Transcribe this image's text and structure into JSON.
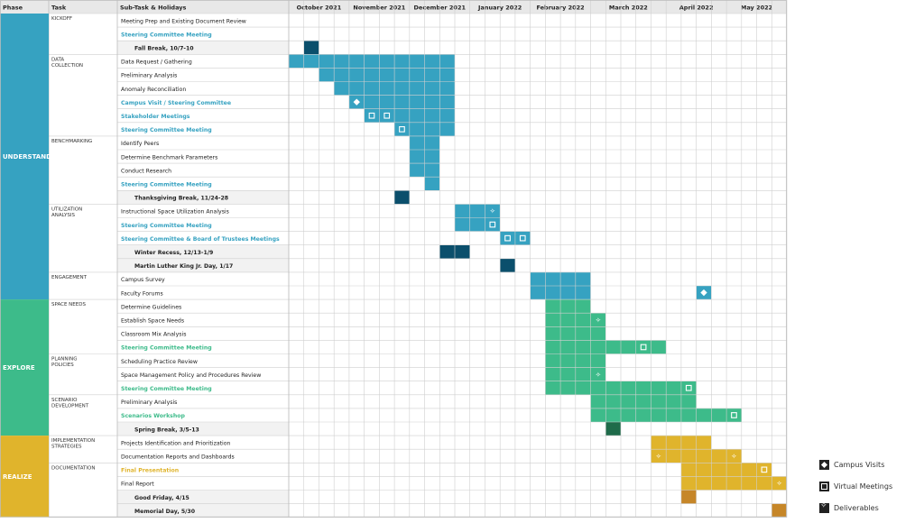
{
  "header": {
    "phase": "Phase",
    "task": "Task",
    "subtask": "Sub-Task & Holidays"
  },
  "months": [
    {
      "label": "October 2021",
      "weeks": 4
    },
    {
      "label": "November 2021",
      "weeks": 4
    },
    {
      "label": "December 2021",
      "weeks": 4
    },
    {
      "label": "January 2022",
      "weeks": 4
    },
    {
      "label": "February 2022",
      "weeks": 4
    },
    {
      "label": "March 2022",
      "weeks": 5
    },
    {
      "label": "April 2022",
      "weeks": 4
    },
    {
      "label": "May 2022",
      "weeks": 4
    }
  ],
  "phases": [
    {
      "name": "UNDERSTAND",
      "start": 0,
      "end": 20,
      "color": "#36a2c1"
    },
    {
      "name": "EXPLORE",
      "start": 21,
      "end": 30,
      "color": "#3dbb8a"
    },
    {
      "name": "REALIZE",
      "start": 31,
      "end": 36,
      "color": "#e0b42c"
    }
  ],
  "tasks": [
    {
      "name": "KICKOFF",
      "start": 0,
      "end": 2
    },
    {
      "name": "DATA COLLECTION",
      "start": 3,
      "end": 8
    },
    {
      "name": "BENCHMARKING",
      "start": 9,
      "end": 13
    },
    {
      "name": "UTILIZATION ANALYSIS",
      "start": 14,
      "end": 18
    },
    {
      "name": "ENGAGEMENT",
      "start": 19,
      "end": 20
    },
    {
      "name": "SPACE NEEDS",
      "start": 21,
      "end": 24
    },
    {
      "name": "PLANNING POLICIES",
      "start": 25,
      "end": 27
    },
    {
      "name": "SCENARIO DEVELOPMENT",
      "start": 28,
      "end": 30
    },
    {
      "name": "IMPLEMENTATION STRATEGIES",
      "start": 31,
      "end": 32
    },
    {
      "name": "DOCUMENTATION",
      "start": 33,
      "end": 36
    }
  ],
  "rows": [
    {
      "label": "Meeting Prep and Existing Document Review",
      "style": "plain",
      "bars": [],
      "markers": []
    },
    {
      "label": "Steering Committee Meeting",
      "style": "meeting",
      "phase": 0,
      "bars": [],
      "markers": [
        {
          "col": 0,
          "type": "square"
        }
      ]
    },
    {
      "label": "Fall Break, 10/7-10",
      "style": "holiday",
      "phase": 0,
      "bars": [
        [
          1,
          2,
          "dark"
        ]
      ],
      "markers": []
    },
    {
      "label": "Data Request / Gathering",
      "style": "plain",
      "phase": 0,
      "bars": [
        [
          0,
          2,
          "main"
        ],
        [
          2,
          11,
          "main"
        ]
      ],
      "markers": []
    },
    {
      "label": "Preliminary Analysis",
      "style": "plain",
      "phase": 0,
      "bars": [
        [
          2,
          11,
          "main"
        ]
      ],
      "markers": []
    },
    {
      "label": "Anomaly Reconciliation",
      "style": "plain",
      "phase": 0,
      "bars": [
        [
          3,
          11,
          "main"
        ]
      ],
      "markers": []
    },
    {
      "label": "Campus Visit / Steering Committee",
      "style": "meeting",
      "phase": 0,
      "bars": [
        [
          4,
          11,
          "main"
        ]
      ],
      "markers": [
        {
          "col": 4,
          "type": "diamond"
        }
      ]
    },
    {
      "label": "Stakeholder Meetings",
      "style": "meeting",
      "phase": 0,
      "bars": [
        [
          5,
          11,
          "main"
        ]
      ],
      "markers": [
        {
          "col": 5,
          "type": "square"
        },
        {
          "col": 6,
          "type": "square"
        }
      ]
    },
    {
      "label": "Steering Committee Meeting",
      "style": "meeting",
      "phase": 0,
      "bars": [
        [
          7,
          11,
          "main"
        ]
      ],
      "markers": [
        {
          "col": 7,
          "type": "square"
        }
      ]
    },
    {
      "label": "Identify Peers",
      "style": "plain",
      "phase": 0,
      "bars": [
        [
          8,
          10,
          "main"
        ]
      ],
      "markers": []
    },
    {
      "label": "Determine Benchmark Parameters",
      "style": "plain",
      "phase": 0,
      "bars": [
        [
          8,
          10,
          "main"
        ]
      ],
      "markers": []
    },
    {
      "label": "Conduct Research",
      "style": "plain",
      "phase": 0,
      "bars": [
        [
          8,
          10,
          "main"
        ]
      ],
      "markers": []
    },
    {
      "label": "Steering Committee Meeting",
      "style": "meeting",
      "phase": 0,
      "bars": [
        [
          9,
          10,
          "main"
        ]
      ],
      "markers": []
    },
    {
      "label": "Thanksgiving Break, 11/24-28",
      "style": "holiday",
      "phase": 0,
      "bars": [
        [
          7,
          8,
          "dark"
        ]
      ],
      "markers": []
    },
    {
      "label": "Instructional Space Utilization Analysis",
      "style": "plain",
      "phase": 0,
      "bars": [
        [
          11,
          14,
          "main"
        ]
      ],
      "markers": [
        {
          "col": 13,
          "type": "sparkle"
        }
      ]
    },
    {
      "label": "Steering Committee Meeting",
      "style": "meeting",
      "phase": 0,
      "bars": [
        [
          11,
          14,
          "main"
        ]
      ],
      "markers": [
        {
          "col": 13,
          "type": "square"
        }
      ]
    },
    {
      "label": "Steering Committee & Board of Trustees Meetings",
      "style": "meeting",
      "phase": 0,
      "bars": [
        [
          14,
          16,
          "main"
        ]
      ],
      "markers": [
        {
          "col": 14,
          "type": "square"
        },
        {
          "col": 15,
          "type": "square"
        }
      ]
    },
    {
      "label": "Winter Recess, 12/13-1/9",
      "style": "holiday",
      "phase": 0,
      "bars": [
        [
          10,
          12,
          "dark"
        ]
      ],
      "markers": []
    },
    {
      "label": "Martin Luther King Jr. Day, 1/17",
      "style": "holiday",
      "phase": 0,
      "bars": [
        [
          14,
          15,
          "dark"
        ]
      ],
      "markers": []
    },
    {
      "label": "Campus Survey",
      "style": "plain",
      "phase": 0,
      "bars": [
        [
          16,
          20,
          "main"
        ]
      ],
      "markers": []
    },
    {
      "label": "Faculty Forums",
      "style": "plain",
      "phase": 0,
      "bars": [
        [
          16,
          20,
          "main"
        ],
        [
          27,
          28,
          "main"
        ]
      ],
      "markers": [
        {
          "col": 27,
          "type": "diamond"
        }
      ]
    },
    {
      "label": "Determine Guidelines",
      "style": "plain",
      "phase": 1,
      "bars": [
        [
          17,
          20,
          "main"
        ]
      ],
      "markers": []
    },
    {
      "label": "Establish Space Needs",
      "style": "plain",
      "phase": 1,
      "bars": [
        [
          17,
          21,
          "main"
        ]
      ],
      "markers": [
        {
          "col": 20,
          "type": "sparkle"
        }
      ]
    },
    {
      "label": "Classroom Mix Analysis",
      "style": "plain",
      "phase": 1,
      "bars": [
        [
          17,
          21,
          "main"
        ]
      ],
      "markers": []
    },
    {
      "label": "Steering Committee Meeting",
      "style": "meeting",
      "phase": 1,
      "bars": [
        [
          17,
          25,
          "main"
        ]
      ],
      "markers": [
        {
          "col": 23,
          "type": "square"
        }
      ]
    },
    {
      "label": "Scheduling Practice Review",
      "style": "plain",
      "phase": 1,
      "bars": [
        [
          17,
          21,
          "main"
        ]
      ],
      "markers": []
    },
    {
      "label": "Space Management Policy and Procedures Review",
      "style": "plain",
      "phase": 1,
      "bars": [
        [
          17,
          21,
          "main"
        ]
      ],
      "markers": [
        {
          "col": 20,
          "type": "sparkle"
        }
      ]
    },
    {
      "label": "Steering Committee Meeting",
      "style": "meeting",
      "phase": 1,
      "bars": [
        [
          17,
          27,
          "main"
        ]
      ],
      "markers": [
        {
          "col": 26,
          "type": "square"
        }
      ]
    },
    {
      "label": "Preliminary Analysis",
      "style": "plain",
      "phase": 1,
      "bars": [
        [
          20,
          27,
          "main"
        ]
      ],
      "markers": []
    },
    {
      "label": "Scenarios Workshop",
      "style": "meeting",
      "phase": 1,
      "bars": [
        [
          20,
          30,
          "main"
        ]
      ],
      "markers": [
        {
          "col": 29,
          "type": "square"
        }
      ]
    },
    {
      "label": "Spring Break, 3/5-13",
      "style": "holiday",
      "phase": 1,
      "bars": [
        [
          21,
          22,
          "dark"
        ]
      ],
      "markers": []
    },
    {
      "label": "Projects Identification and Prioritization",
      "style": "plain",
      "phase": 2,
      "bars": [
        [
          24,
          28,
          "main"
        ]
      ],
      "markers": []
    },
    {
      "label": "Documentation Reports and Dashboards",
      "style": "plain",
      "phase": 2,
      "bars": [
        [
          24,
          30,
          "main"
        ]
      ],
      "markers": [
        {
          "col": 24,
          "type": "sparkle"
        },
        {
          "col": 29,
          "type": "sparkle"
        }
      ]
    },
    {
      "label": "Final Presentation",
      "style": "meeting",
      "phase": 2,
      "bars": [
        [
          26,
          32,
          "main"
        ]
      ],
      "markers": [
        {
          "col": 31,
          "type": "square"
        }
      ]
    },
    {
      "label": "Final Report",
      "style": "plain",
      "phase": 2,
      "bars": [
        [
          26,
          33,
          "main"
        ]
      ],
      "markers": [
        {
          "col": 32,
          "type": "sparkle"
        }
      ]
    },
    {
      "label": "Good Friday, 4/15",
      "style": "holiday",
      "phase": 2,
      "bars": [
        [
          26,
          27,
          "dark"
        ]
      ],
      "markers": []
    },
    {
      "label": "Memorial Day, 5/30",
      "style": "holiday",
      "phase": 2,
      "bars": [
        [
          32,
          33,
          "dark"
        ]
      ],
      "markers": []
    }
  ],
  "legend": [
    {
      "label": "Campus Visits",
      "icon": "diamond"
    },
    {
      "label": "Virtual Meetings",
      "icon": "square"
    },
    {
      "label": "Deliverables",
      "icon": "sparkle"
    }
  ],
  "colors": {
    "understand": "#36a2c1",
    "understand_dark": "#0b4f6c",
    "explore": "#3dbb8a",
    "explore_dark": "#1f6b4a",
    "realize": "#e0b42c",
    "realize_dark": "#c68628",
    "grid": "#cfcfcf",
    "header": "#e8e8e8",
    "holiday_row": "#f2f2f2"
  }
}
